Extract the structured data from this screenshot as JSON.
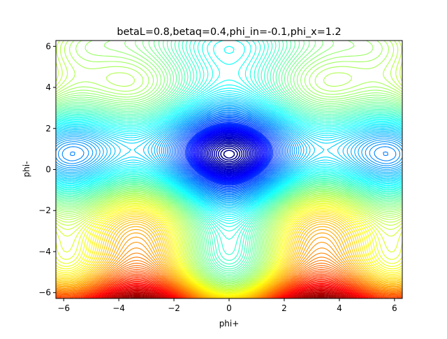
{
  "chart_data": {
    "type": "contour",
    "title": "betaL=0.8,betaq=0.4,phi_in=-0.1,phi_x=1.2",
    "xlabel": "phi+",
    "ylabel": "phi-",
    "xlim": [
      -6.283,
      6.283
    ],
    "ylim": [
      -6.283,
      6.283
    ],
    "xticks": [
      -6,
      -4,
      -2,
      0,
      2,
      4,
      6
    ],
    "yticks": [
      -6,
      -4,
      -2,
      0,
      2,
      4,
      6
    ],
    "colormap": "jet",
    "minimum": {
      "x": 0,
      "y": 0.75
    },
    "params": {
      "betaL": 0.8,
      "betaq": 0.4,
      "phi_in": -0.1,
      "phi_x": 1.2
    },
    "grid": false,
    "legend": "none"
  }
}
